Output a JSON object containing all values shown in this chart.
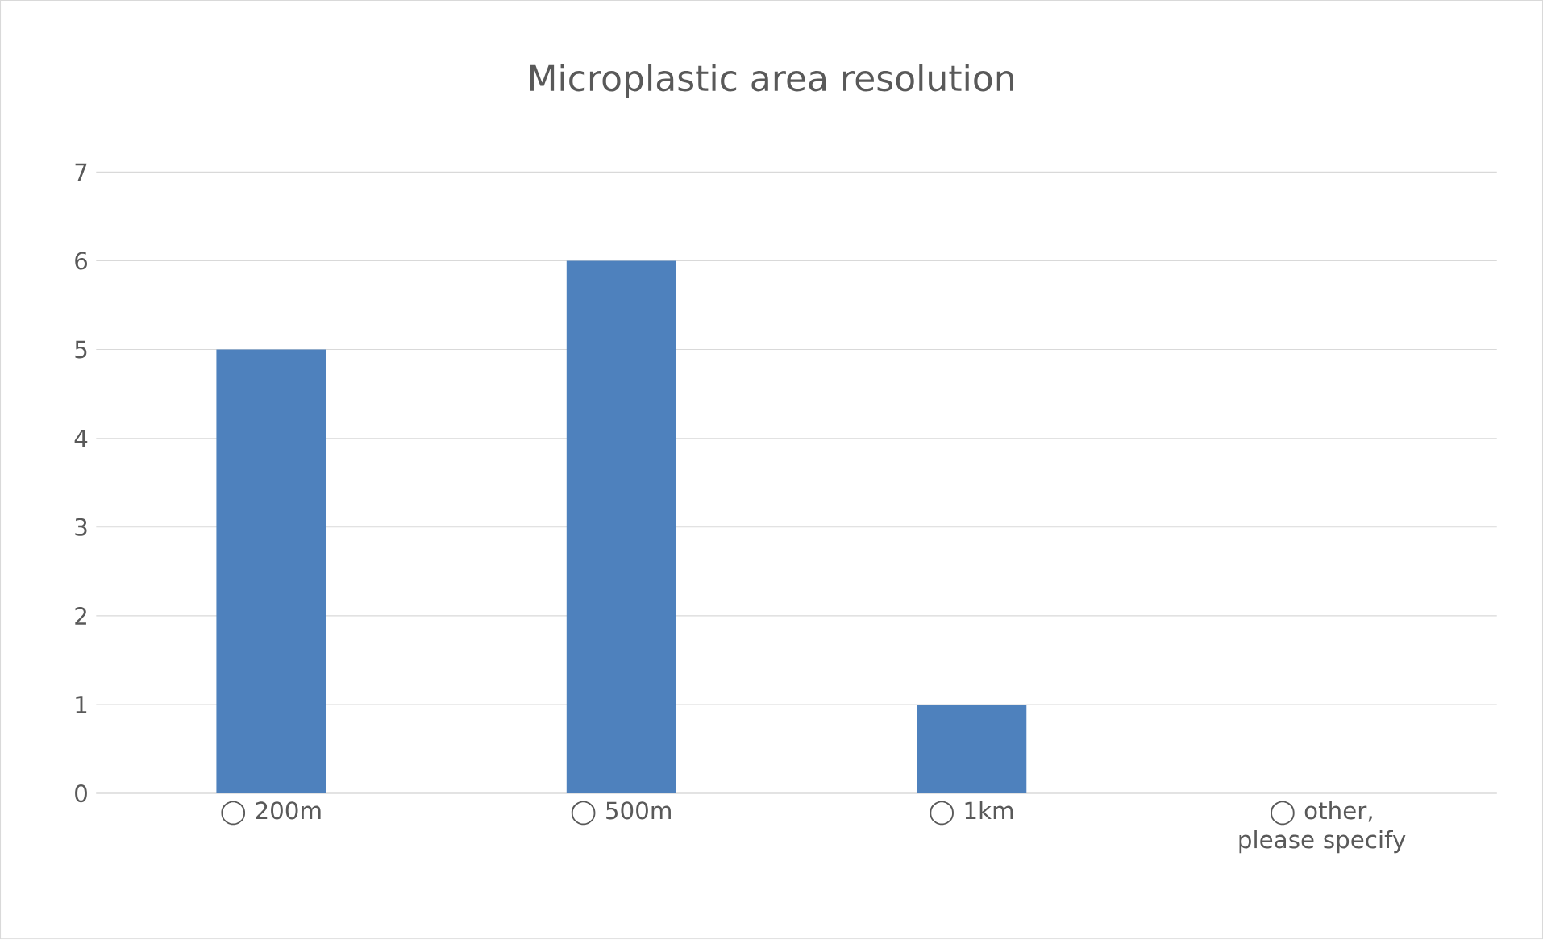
{
  "chart_data": {
    "type": "bar",
    "title": "Microplastic area resolution",
    "categories": [
      "◯ 200m",
      "◯ 500m",
      "◯ 1km",
      "◯ other, please specify"
    ],
    "values": [
      5,
      6,
      1,
      0
    ],
    "color": "#4e81bd",
    "ylim": [
      0,
      7
    ],
    "yticks": [
      0,
      1,
      2,
      3,
      4,
      5,
      6,
      7
    ],
    "grid": "y"
  }
}
